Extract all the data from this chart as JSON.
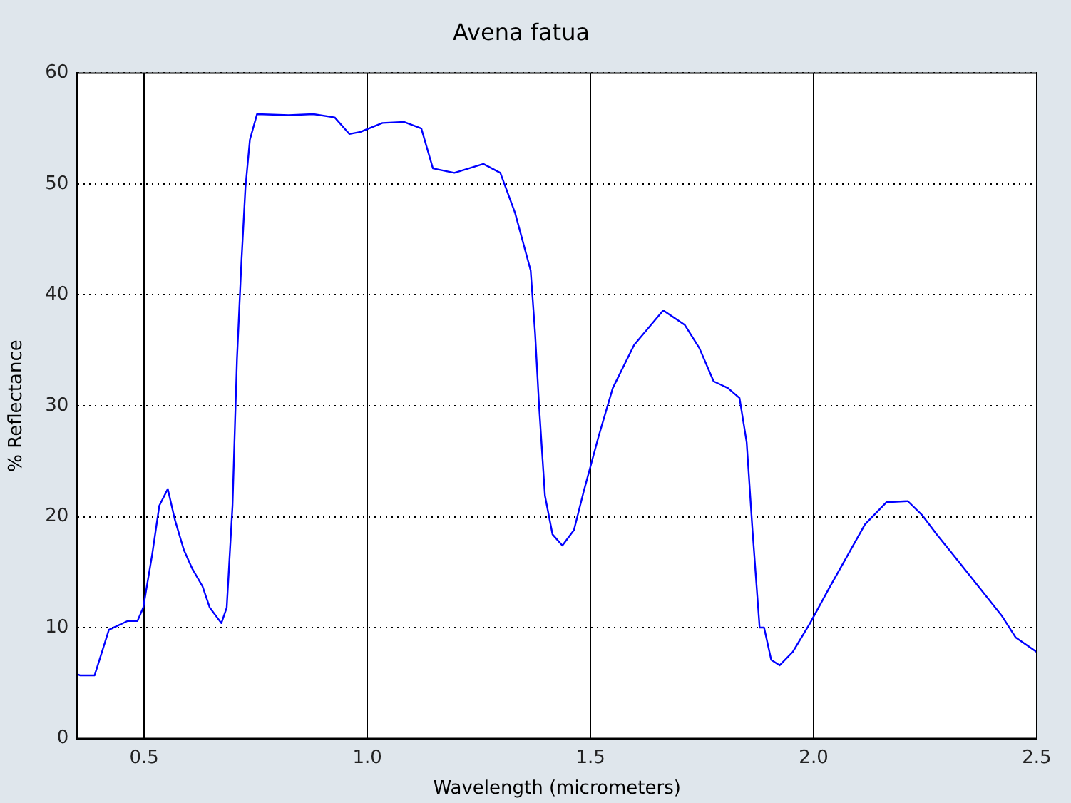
{
  "chart_data": {
    "type": "line",
    "title": "Avena fatua",
    "xlabel": "Wavelength (micrometers)",
    "ylabel": "% Reflectance",
    "x": [
      0.35,
      0.356,
      0.389,
      0.421,
      0.463,
      0.485,
      0.498,
      0.518,
      0.534,
      0.553,
      0.569,
      0.589,
      0.608,
      0.631,
      0.647,
      0.673,
      0.685,
      0.698,
      0.708,
      0.718,
      0.727,
      0.737,
      0.753,
      0.824,
      0.879,
      0.927,
      0.96,
      0.985,
      1.034,
      1.082,
      1.115,
      1.121,
      1.147,
      1.195,
      1.26,
      1.298,
      1.331,
      1.366,
      1.376,
      1.385,
      1.398,
      1.415,
      1.437,
      1.463,
      1.485,
      1.518,
      1.55,
      1.598,
      1.663,
      1.711,
      1.744,
      1.776,
      1.808,
      1.834,
      1.85,
      1.863,
      1.879,
      1.889,
      1.905,
      1.924,
      1.953,
      1.992,
      2.034,
      2.115,
      2.163,
      2.211,
      2.244,
      2.276,
      2.324,
      2.421,
      2.453,
      2.5
    ],
    "series": [
      {
        "color": "#0000ff",
        "values": [
          5.8,
          5.7,
          5.7,
          9.8,
          10.6,
          10.6,
          11.8,
          16.6,
          21,
          22.5,
          19.7,
          17,
          15.3,
          13.7,
          11.8,
          10.4,
          11.8,
          21,
          34.2,
          43,
          49.7,
          54,
          56.3,
          56.2,
          56.3,
          56,
          54.5,
          54.7,
          55.5,
          55.6,
          55.1,
          55,
          51.4,
          51,
          51.8,
          51,
          47.4,
          42.2,
          36.5,
          29.9,
          21.9,
          18.4,
          17.4,
          18.8,
          22.3,
          27.2,
          31.6,
          35.5,
          38.6,
          37.3,
          35.2,
          32.2,
          31.6,
          30.7,
          26.7,
          18.8,
          10,
          10,
          7.1,
          6.6,
          7.8,
          10.4,
          13.5,
          19.3,
          21.3,
          21.4,
          20.1,
          18.4,
          16,
          11.1,
          9.1,
          7.8
        ]
      }
    ],
    "xlim": [
      0.35,
      2.5
    ],
    "xticks": [
      0.5,
      {
        "value": 1,
        "label": "1.0"
      },
      1.5,
      {
        "value": 2,
        "label": "2.0"
      },
      2.5
    ],
    "ylim": [
      0,
      60
    ],
    "yticks": [
      0,
      10,
      20,
      30,
      40,
      50,
      60
    ],
    "grid": true,
    "legend": false,
    "marker": "none",
    "line_style": "solid"
  }
}
